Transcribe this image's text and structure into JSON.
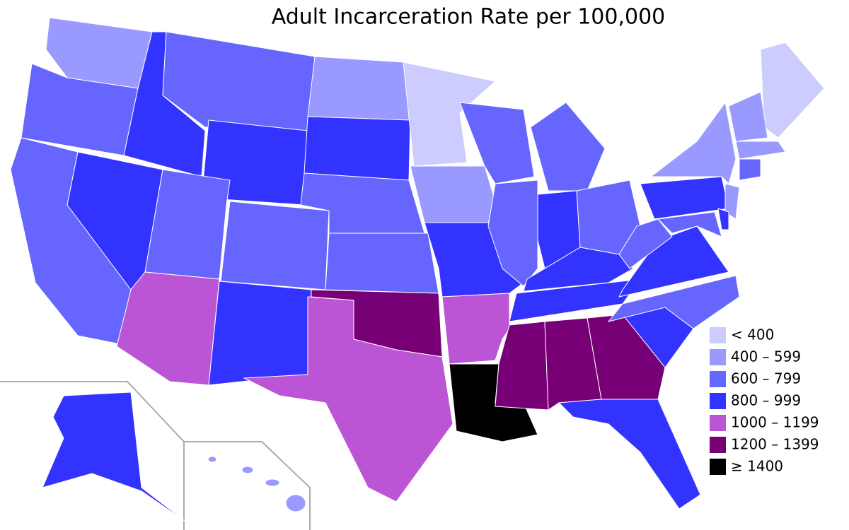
{
  "title": "Adult Incarceration Rate per 100,000",
  "legend": [
    {
      "label": "< 400",
      "color": "#ccccff"
    },
    {
      "label": "400 – 599",
      "color": "#9999ff"
    },
    {
      "label": "600 – 799",
      "color": "#6666ff"
    },
    {
      "label": "800 – 999",
      "color": "#3333ff"
    },
    {
      "label": "1000 – 1199",
      "color": "#bb55d5"
    },
    {
      "label": "1200 – 1399",
      "color": "#770077"
    },
    {
      "label": "≥ 1400",
      "color": "#000000"
    }
  ]
}
